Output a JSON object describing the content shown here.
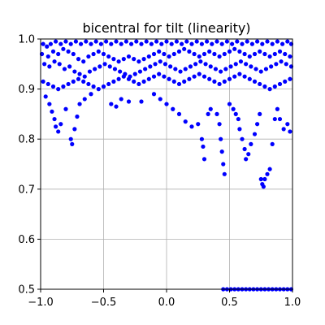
{
  "chart_data": {
    "type": "scatter",
    "title": "bicentral for tilt (linearity)",
    "xlabel": "",
    "ylabel": "",
    "xlim": [
      -1.0,
      1.0
    ],
    "ylim": [
      0.5,
      1.0
    ],
    "grid": true,
    "x_ticks": [
      -1.0,
      -0.5,
      0.0,
      0.5,
      1.0
    ],
    "x_tick_labels": [
      "−1.0",
      "−0.5",
      "0.0",
      "0.5",
      "1.0"
    ],
    "y_ticks": [
      0.5,
      0.6,
      0.7,
      0.8,
      0.9,
      1.0
    ],
    "y_tick_labels": [
      "0.5",
      "0.6",
      "0.7",
      "0.8",
      "0.9",
      "1.0"
    ],
    "marker_color": "#0000ff",
    "series": [
      {
        "points": [
          [
            -0.98,
            0.99
          ],
          [
            -0.95,
            0.985
          ],
          [
            -0.92,
            0.99
          ],
          [
            -0.88,
            0.995
          ],
          [
            -0.84,
            0.99
          ],
          [
            -0.8,
            0.995
          ],
          [
            -0.76,
            0.99
          ],
          [
            -0.72,
            0.995
          ],
          [
            -0.68,
            0.99
          ],
          [
            -0.64,
            0.995
          ],
          [
            -0.6,
            0.99
          ],
          [
            -0.56,
            0.995
          ],
          [
            -0.52,
            0.99
          ],
          [
            -0.48,
            0.995
          ],
          [
            -0.44,
            0.99
          ],
          [
            -0.4,
            0.995
          ],
          [
            -0.36,
            0.99
          ],
          [
            -0.32,
            0.995
          ],
          [
            -0.28,
            0.99
          ],
          [
            -0.24,
            0.995
          ],
          [
            -0.2,
            0.99
          ],
          [
            -0.16,
            0.995
          ],
          [
            -0.12,
            0.99
          ],
          [
            -0.08,
            0.995
          ],
          [
            -0.04,
            0.99
          ],
          [
            0.0,
            0.995
          ],
          [
            0.04,
            0.99
          ],
          [
            0.08,
            0.995
          ],
          [
            0.12,
            0.99
          ],
          [
            0.16,
            0.995
          ],
          [
            0.2,
            0.99
          ],
          [
            0.24,
            0.995
          ],
          [
            0.28,
            0.99
          ],
          [
            0.32,
            0.995
          ],
          [
            0.36,
            0.99
          ],
          [
            0.4,
            0.995
          ],
          [
            0.44,
            0.99
          ],
          [
            0.48,
            0.995
          ],
          [
            0.52,
            0.99
          ],
          [
            0.56,
            0.995
          ],
          [
            0.6,
            0.99
          ],
          [
            0.64,
            0.995
          ],
          [
            0.68,
            0.99
          ],
          [
            0.72,
            0.995
          ],
          [
            0.76,
            0.99
          ],
          [
            0.8,
            0.995
          ],
          [
            0.84,
            0.99
          ],
          [
            0.88,
            0.995
          ],
          [
            0.92,
            0.99
          ],
          [
            0.96,
            0.995
          ],
          [
            0.99,
            0.99
          ],
          [
            -0.99,
            0.97
          ],
          [
            -0.94,
            0.965
          ],
          [
            -0.9,
            0.975
          ],
          [
            -0.86,
            0.97
          ],
          [
            -0.82,
            0.98
          ],
          [
            -0.78,
            0.975
          ],
          [
            -0.74,
            0.97
          ],
          [
            -0.7,
            0.96
          ],
          [
            -0.66,
            0.955
          ],
          [
            -0.62,
            0.965
          ],
          [
            -0.58,
            0.97
          ],
          [
            -0.54,
            0.975
          ],
          [
            -0.5,
            0.97
          ],
          [
            -0.46,
            0.965
          ],
          [
            -0.42,
            0.96
          ],
          [
            -0.38,
            0.955
          ],
          [
            -0.34,
            0.96
          ],
          [
            -0.3,
            0.965
          ],
          [
            -0.26,
            0.96
          ],
          [
            -0.22,
            0.955
          ],
          [
            -0.18,
            0.96
          ],
          [
            -0.14,
            0.965
          ],
          [
            -0.1,
            0.97
          ],
          [
            -0.06,
            0.975
          ],
          [
            -0.02,
            0.97
          ],
          [
            0.02,
            0.965
          ],
          [
            0.06,
            0.97
          ],
          [
            0.1,
            0.975
          ],
          [
            0.14,
            0.98
          ],
          [
            0.18,
            0.975
          ],
          [
            0.22,
            0.97
          ],
          [
            0.26,
            0.965
          ],
          [
            0.3,
            0.97
          ],
          [
            0.34,
            0.975
          ],
          [
            0.38,
            0.97
          ],
          [
            0.42,
            0.965
          ],
          [
            0.46,
            0.97
          ],
          [
            0.5,
            0.975
          ],
          [
            0.54,
            0.98
          ],
          [
            0.58,
            0.975
          ],
          [
            0.62,
            0.97
          ],
          [
            0.66,
            0.965
          ],
          [
            0.7,
            0.97
          ],
          [
            0.74,
            0.975
          ],
          [
            0.78,
            0.97
          ],
          [
            0.82,
            0.965
          ],
          [
            0.86,
            0.97
          ],
          [
            0.9,
            0.975
          ],
          [
            0.94,
            0.97
          ],
          [
            0.98,
            0.965
          ],
          [
            -0.97,
            0.95
          ],
          [
            -0.93,
            0.945
          ],
          [
            -0.89,
            0.955
          ],
          [
            -0.85,
            0.95
          ],
          [
            -0.81,
            0.94
          ],
          [
            -0.77,
            0.945
          ],
          [
            -0.73,
            0.935
          ],
          [
            -0.69,
            0.93
          ],
          [
            -0.65,
            0.925
          ],
          [
            -0.61,
            0.935
          ],
          [
            -0.57,
            0.94
          ],
          [
            -0.53,
            0.945
          ],
          [
            -0.49,
            0.95
          ],
          [
            -0.45,
            0.945
          ],
          [
            -0.41,
            0.94
          ],
          [
            -0.37,
            0.935
          ],
          [
            -0.33,
            0.93
          ],
          [
            -0.29,
            0.925
          ],
          [
            -0.25,
            0.93
          ],
          [
            -0.21,
            0.935
          ],
          [
            -0.17,
            0.94
          ],
          [
            -0.13,
            0.945
          ],
          [
            -0.09,
            0.95
          ],
          [
            -0.05,
            0.955
          ],
          [
            -0.01,
            0.95
          ],
          [
            0.03,
            0.945
          ],
          [
            0.07,
            0.94
          ],
          [
            0.11,
            0.935
          ],
          [
            0.15,
            0.94
          ],
          [
            0.19,
            0.945
          ],
          [
            0.23,
            0.95
          ],
          [
            0.27,
            0.955
          ],
          [
            0.31,
            0.95
          ],
          [
            0.35,
            0.945
          ],
          [
            0.39,
            0.94
          ],
          [
            0.43,
            0.935
          ],
          [
            0.47,
            0.94
          ],
          [
            0.51,
            0.945
          ],
          [
            0.55,
            0.95
          ],
          [
            0.59,
            0.955
          ],
          [
            0.63,
            0.95
          ],
          [
            0.67,
            0.945
          ],
          [
            0.71,
            0.94
          ],
          [
            0.75,
            0.935
          ],
          [
            0.79,
            0.94
          ],
          [
            0.83,
            0.945
          ],
          [
            0.87,
            0.95
          ],
          [
            0.91,
            0.955
          ],
          [
            0.95,
            0.95
          ],
          [
            0.99,
            0.945
          ],
          [
            -0.98,
            0.915
          ],
          [
            -0.94,
            0.91
          ],
          [
            -0.9,
            0.905
          ],
          [
            -0.86,
            0.9
          ],
          [
            -0.82,
            0.905
          ],
          [
            -0.78,
            0.91
          ],
          [
            -0.74,
            0.915
          ],
          [
            -0.7,
            0.92
          ],
          [
            -0.66,
            0.915
          ],
          [
            -0.62,
            0.91
          ],
          [
            -0.58,
            0.905
          ],
          [
            -0.54,
            0.9
          ],
          [
            -0.5,
            0.905
          ],
          [
            -0.46,
            0.91
          ],
          [
            -0.42,
            0.915
          ],
          [
            -0.38,
            0.92
          ],
          [
            -0.34,
            0.925
          ],
          [
            -0.3,
            0.92
          ],
          [
            -0.26,
            0.915
          ],
          [
            -0.22,
            0.91
          ],
          [
            -0.18,
            0.915
          ],
          [
            -0.14,
            0.92
          ],
          [
            -0.1,
            0.925
          ],
          [
            -0.06,
            0.93
          ],
          [
            -0.02,
            0.925
          ],
          [
            0.02,
            0.92
          ],
          [
            0.06,
            0.915
          ],
          [
            0.1,
            0.91
          ],
          [
            0.14,
            0.915
          ],
          [
            0.18,
            0.92
          ],
          [
            0.22,
            0.925
          ],
          [
            0.26,
            0.93
          ],
          [
            0.3,
            0.925
          ],
          [
            0.34,
            0.92
          ],
          [
            0.38,
            0.915
          ],
          [
            0.42,
            0.91
          ],
          [
            0.46,
            0.915
          ],
          [
            0.5,
            0.92
          ],
          [
            0.54,
            0.925
          ],
          [
            0.58,
            0.93
          ],
          [
            0.62,
            0.925
          ],
          [
            0.66,
            0.92
          ],
          [
            0.7,
            0.915
          ],
          [
            0.74,
            0.91
          ],
          [
            0.78,
            0.905
          ],
          [
            0.82,
            0.9
          ],
          [
            0.86,
            0.905
          ],
          [
            0.9,
            0.91
          ],
          [
            0.94,
            0.915
          ],
          [
            0.98,
            0.92
          ],
          [
            -0.96,
            0.885
          ],
          [
            -0.93,
            0.87
          ],
          [
            -0.91,
            0.855
          ],
          [
            -0.89,
            0.84
          ],
          [
            -0.88,
            0.825
          ],
          [
            -0.86,
            0.815
          ],
          [
            -0.84,
            0.83
          ],
          [
            -0.8,
            0.86
          ],
          [
            -0.76,
            0.8
          ],
          [
            -0.75,
            0.79
          ],
          [
            -0.73,
            0.82
          ],
          [
            -0.71,
            0.845
          ],
          [
            -0.69,
            0.87
          ],
          [
            -0.65,
            0.88
          ],
          [
            -0.6,
            0.89
          ],
          [
            -0.44,
            0.87
          ],
          [
            -0.4,
            0.865
          ],
          [
            -0.36,
            0.88
          ],
          [
            -0.3,
            0.875
          ],
          [
            -0.2,
            0.875
          ],
          [
            -0.1,
            0.89
          ],
          [
            -0.05,
            0.88
          ],
          [
            0.0,
            0.87
          ],
          [
            0.05,
            0.86
          ],
          [
            0.1,
            0.85
          ],
          [
            0.15,
            0.835
          ],
          [
            0.2,
            0.825
          ],
          [
            0.25,
            0.83
          ],
          [
            0.28,
            0.8
          ],
          [
            0.29,
            0.785
          ],
          [
            0.3,
            0.76
          ],
          [
            0.33,
            0.85
          ],
          [
            0.35,
            0.86
          ],
          [
            0.4,
            0.85
          ],
          [
            0.42,
            0.83
          ],
          [
            0.43,
            0.8
          ],
          [
            0.44,
            0.775
          ],
          [
            0.45,
            0.75
          ],
          [
            0.46,
            0.73
          ],
          [
            0.5,
            0.87
          ],
          [
            0.53,
            0.86
          ],
          [
            0.55,
            0.85
          ],
          [
            0.57,
            0.84
          ],
          [
            0.58,
            0.82
          ],
          [
            0.6,
            0.8
          ],
          [
            0.62,
            0.78
          ],
          [
            0.63,
            0.76
          ],
          [
            0.65,
            0.77
          ],
          [
            0.67,
            0.79
          ],
          [
            0.7,
            0.81
          ],
          [
            0.72,
            0.83
          ],
          [
            0.74,
            0.85
          ],
          [
            0.75,
            0.72
          ],
          [
            0.76,
            0.71
          ],
          [
            0.77,
            0.705
          ],
          [
            0.78,
            0.72
          ],
          [
            0.8,
            0.73
          ],
          [
            0.82,
            0.74
          ],
          [
            0.84,
            0.79
          ],
          [
            0.86,
            0.84
          ],
          [
            0.88,
            0.86
          ],
          [
            0.9,
            0.84
          ],
          [
            0.93,
            0.82
          ],
          [
            0.96,
            0.83
          ],
          [
            0.98,
            0.815
          ],
          [
            0.45,
            0.5
          ],
          [
            0.48,
            0.5
          ],
          [
            0.51,
            0.5
          ],
          [
            0.54,
            0.5
          ],
          [
            0.57,
            0.5
          ],
          [
            0.6,
            0.5
          ],
          [
            0.63,
            0.5
          ],
          [
            0.66,
            0.5
          ],
          [
            0.69,
            0.5
          ],
          [
            0.72,
            0.5
          ],
          [
            0.75,
            0.5
          ],
          [
            0.78,
            0.5
          ],
          [
            0.81,
            0.5
          ],
          [
            0.84,
            0.5
          ],
          [
            0.87,
            0.5
          ],
          [
            0.9,
            0.5
          ],
          [
            0.93,
            0.5
          ],
          [
            0.96,
            0.5
          ],
          [
            0.99,
            0.5
          ]
        ]
      }
    ]
  }
}
